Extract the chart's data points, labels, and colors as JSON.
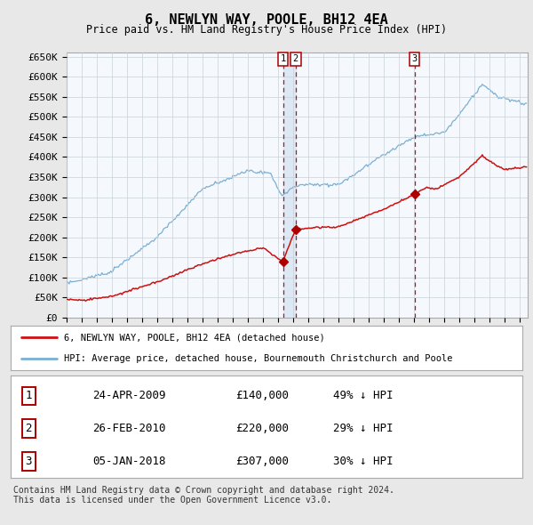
{
  "title": "6, NEWLYN WAY, POOLE, BH12 4EA",
  "subtitle": "Price paid vs. HM Land Registry's House Price Index (HPI)",
  "ylim": [
    0,
    660000
  ],
  "yticks": [
    0,
    50000,
    100000,
    150000,
    200000,
    250000,
    300000,
    350000,
    400000,
    450000,
    500000,
    550000,
    600000,
    650000
  ],
  "bg_color": "#e8e8e8",
  "plot_bg_color": "#f5f8fc",
  "grid_color": "#c8d0d8",
  "hpi_color": "#7ab0d4",
  "price_color": "#cc1111",
  "marker_color": "#aa0000",
  "shade_color": "#dde8f5",
  "sales": [
    {
      "label": "1",
      "date_x": 2009.31,
      "price": 140000,
      "pct": "49% ↓ HPI",
      "date_str": "24-APR-2009"
    },
    {
      "label": "2",
      "date_x": 2010.15,
      "price": 220000,
      "pct": "29% ↓ HPI",
      "date_str": "26-FEB-2010"
    },
    {
      "label": "3",
      "date_x": 2018.02,
      "price": 307000,
      "pct": "30% ↓ HPI",
      "date_str": "05-JAN-2018"
    }
  ],
  "legend_entries": [
    "6, NEWLYN WAY, POOLE, BH12 4EA (detached house)",
    "HPI: Average price, detached house, Bournemouth Christchurch and Poole"
  ],
  "footer": "Contains HM Land Registry data © Crown copyright and database right 2024.\nThis data is licensed under the Open Government Licence v3.0.",
  "xmin": 1995.0,
  "xmax": 2025.5
}
